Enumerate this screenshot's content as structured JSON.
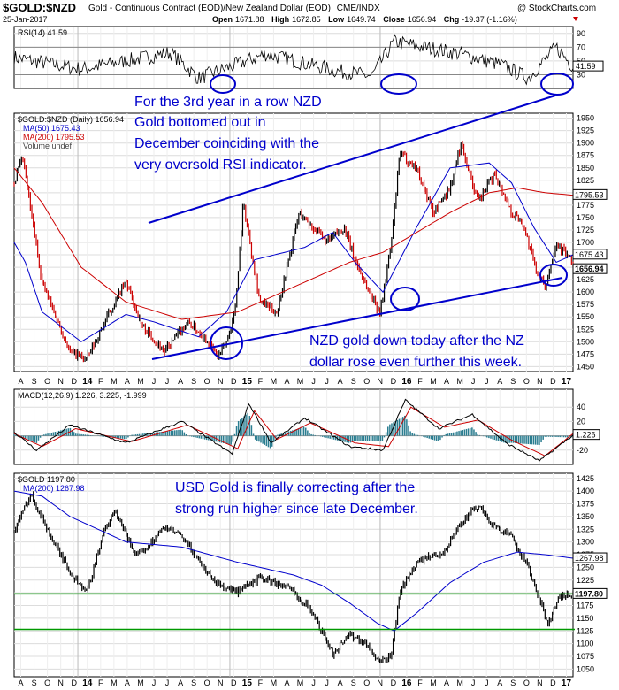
{
  "header": {
    "symbol": "$GOLD:$NZD",
    "description": "Gold - Continuous Contract (EOD)/New Zealand Dollar (EOD)",
    "exchange": "CME/INDX",
    "date": "25-Jan-2017",
    "open_label": "Open",
    "open": "1671.88",
    "high_label": "High",
    "high": "1672.85",
    "low_label": "Low",
    "low": "1649.74",
    "close_label": "Close",
    "close": "1656.94",
    "chg_label": "Chg",
    "chg": "-19.37 (-1.16%)",
    "watermark": "@ StockCharts.com"
  },
  "colors": {
    "up": "#000000",
    "down": "#cc0000",
    "ma50": "#0000cc",
    "ma200": "#cc0000",
    "annotation": "#0000cc",
    "support": "#009900",
    "rsi_band": "#bbbbbb",
    "macd_hist": "#2a7d90",
    "macd_signal": "#cc0000",
    "grid": "#dcdcdc"
  },
  "annotations": {
    "rsi_note": [
      "For the 3rd year in a row NZD",
      "Gold bottomed out in",
      "December coinciding with the",
      "very oversold RSI indicator."
    ],
    "nzd_note": [
      "NZD gold down today after the NZ",
      "dollar rose even further this week."
    ],
    "usd_note": [
      "USD Gold is finally correcting after the",
      "strong run higher since late December."
    ]
  },
  "chart_data": [
    {
      "type": "line",
      "panel": "rsi",
      "title": "RSI(14) 41.59",
      "ylim": [
        10,
        100
      ],
      "yticks": [
        90,
        70,
        50,
        30
      ],
      "bands": [
        30,
        70
      ],
      "last_value": "41.59",
      "sample_points": [
        [
          0,
          55
        ],
        [
          0.12,
          38
        ],
        [
          0.28,
          62
        ],
        [
          0.33,
          25
        ],
        [
          0.45,
          60
        ],
        [
          0.58,
          35
        ],
        [
          0.64,
          28
        ],
        [
          0.68,
          78
        ],
        [
          0.8,
          60
        ],
        [
          0.87,
          45
        ],
        [
          0.92,
          25
        ],
        [
          0.97,
          70
        ],
        [
          1.0,
          42
        ]
      ]
    },
    {
      "type": "line",
      "panel": "price_nzd",
      "title": "$GOLD:$NZD (Daily) 1656.94",
      "ylim": [
        1440,
        1960
      ],
      "yticks": [
        1950,
        1925,
        1900,
        1875,
        1850,
        1825,
        1800,
        1775,
        1750,
        1725,
        1700,
        1675,
        1650,
        1625,
        1600,
        1575,
        1550,
        1525,
        1500,
        1475,
        1450
      ],
      "series": [
        {
          "name": "MA(50) 1675.43",
          "points": [
            [
              0,
              1700
            ],
            [
              0.02,
              1660
            ],
            [
              0.05,
              1560
            ],
            [
              0.12,
              1500
            ],
            [
              0.2,
              1555
            ],
            [
              0.25,
              1540
            ],
            [
              0.33,
              1510
            ],
            [
              0.38,
              1560
            ],
            [
              0.43,
              1665
            ],
            [
              0.52,
              1690
            ],
            [
              0.57,
              1720
            ],
            [
              0.61,
              1660
            ],
            [
              0.66,
              1600
            ],
            [
              0.72,
              1730
            ],
            [
              0.78,
              1850
            ],
            [
              0.85,
              1860
            ],
            [
              0.89,
              1820
            ],
            [
              0.93,
              1730
            ],
            [
              0.97,
              1660
            ],
            [
              1.0,
              1675
            ]
          ]
        },
        {
          "name": "MA(200) 1795.53",
          "points": [
            [
              0,
              1850
            ],
            [
              0.05,
              1780
            ],
            [
              0.12,
              1650
            ],
            [
              0.2,
              1580
            ],
            [
              0.3,
              1545
            ],
            [
              0.4,
              1560
            ],
            [
              0.5,
              1610
            ],
            [
              0.6,
              1660
            ],
            [
              0.66,
              1680
            ],
            [
              0.72,
              1720
            ],
            [
              0.78,
              1760
            ],
            [
              0.85,
              1800
            ],
            [
              0.9,
              1810
            ],
            [
              0.95,
              1800
            ],
            [
              1.0,
              1795
            ]
          ]
        },
        {
          "name": "Volume undef",
          "points": []
        },
        {
          "name": "Price",
          "points": [
            [
              0,
              1820
            ],
            [
              0.015,
              1870
            ],
            [
              0.05,
              1620
            ],
            [
              0.1,
              1480
            ],
            [
              0.13,
              1465
            ],
            [
              0.18,
              1580
            ],
            [
              0.2,
              1620
            ],
            [
              0.23,
              1530
            ],
            [
              0.27,
              1480
            ],
            [
              0.31,
              1540
            ],
            [
              0.34,
              1510
            ],
            [
              0.365,
              1470
            ],
            [
              0.38,
              1500
            ],
            [
              0.395,
              1560
            ],
            [
              0.41,
              1780
            ],
            [
              0.44,
              1580
            ],
            [
              0.47,
              1560
            ],
            [
              0.51,
              1760
            ],
            [
              0.56,
              1700
            ],
            [
              0.59,
              1730
            ],
            [
              0.61,
              1665
            ],
            [
              0.635,
              1600
            ],
            [
              0.655,
              1560
            ],
            [
              0.675,
              1700
            ],
            [
              0.69,
              1880
            ],
            [
              0.72,
              1850
            ],
            [
              0.75,
              1760
            ],
            [
              0.78,
              1810
            ],
            [
              0.8,
              1900
            ],
            [
              0.83,
              1780
            ],
            [
              0.86,
              1840
            ],
            [
              0.89,
              1760
            ],
            [
              0.91,
              1740
            ],
            [
              0.935,
              1640
            ],
            [
              0.95,
              1610
            ],
            [
              0.97,
              1700
            ],
            [
              0.985,
              1680
            ],
            [
              1.0,
              1657
            ]
          ]
        }
      ],
      "last_labels": [
        "1795.53",
        "1675.43",
        "1656.94"
      ]
    },
    {
      "type": "line",
      "panel": "macd",
      "title": "MACD(12,26,9) 1.226, 3.225, -1.999",
      "ylim": [
        -40,
        65
      ],
      "yticks": [
        40,
        20,
        -20
      ],
      "last_value": "1.226",
      "series": [
        {
          "name": "MACD 1.226",
          "points": [
            [
              0,
              5
            ],
            [
              0.04,
              -20
            ],
            [
              0.1,
              15
            ],
            [
              0.2,
              -10
            ],
            [
              0.3,
              20
            ],
            [
              0.39,
              -25
            ],
            [
              0.42,
              45
            ],
            [
              0.46,
              -10
            ],
            [
              0.52,
              25
            ],
            [
              0.6,
              -15
            ],
            [
              0.66,
              -20
            ],
            [
              0.7,
              50
            ],
            [
              0.76,
              10
            ],
            [
              0.82,
              30
            ],
            [
              0.88,
              -10
            ],
            [
              0.94,
              -35
            ],
            [
              1.0,
              1
            ]
          ]
        },
        {
          "name": "Signal 3.225",
          "points": [
            [
              0,
              3
            ],
            [
              0.05,
              -15
            ],
            [
              0.11,
              10
            ],
            [
              0.21,
              -8
            ],
            [
              0.31,
              15
            ],
            [
              0.4,
              -18
            ],
            [
              0.43,
              35
            ],
            [
              0.47,
              -5
            ],
            [
              0.53,
              18
            ],
            [
              0.61,
              -10
            ],
            [
              0.67,
              -15
            ],
            [
              0.71,
              40
            ],
            [
              0.77,
              12
            ],
            [
              0.83,
              22
            ],
            [
              0.89,
              -6
            ],
            [
              0.95,
              -28
            ],
            [
              1.0,
              3
            ]
          ]
        },
        {
          "name": "Histogram -1.999",
          "points": []
        }
      ]
    },
    {
      "type": "line",
      "panel": "price_usd",
      "title": "$GOLD 1197.80",
      "ylim": [
        1035,
        1435
      ],
      "yticks": [
        1425,
        1400,
        1375,
        1350,
        1325,
        1300,
        1275,
        1250,
        1225,
        1200,
        1175,
        1150,
        1125,
        1100,
        1075,
        1050
      ],
      "series": [
        {
          "name": "MA(200) 1267.98",
          "points": [
            [
              0,
              1400
            ],
            [
              0.05,
              1390
            ],
            [
              0.1,
              1350
            ],
            [
              0.2,
              1300
            ],
            [
              0.3,
              1290
            ],
            [
              0.4,
              1260
            ],
            [
              0.5,
              1235
            ],
            [
              0.55,
              1215
            ],
            [
              0.6,
              1180
            ],
            [
              0.65,
              1140
            ],
            [
              0.68,
              1125
            ],
            [
              0.72,
              1160
            ],
            [
              0.78,
              1220
            ],
            [
              0.84,
              1260
            ],
            [
              0.9,
              1280
            ],
            [
              0.95,
              1275
            ],
            [
              1.0,
              1268
            ]
          ]
        },
        {
          "name": "Price",
          "points": [
            [
              0,
              1320
            ],
            [
              0.03,
              1395
            ],
            [
              0.07,
              1300
            ],
            [
              0.1,
              1240
            ],
            [
              0.13,
              1200
            ],
            [
              0.16,
              1320
            ],
            [
              0.18,
              1360
            ],
            [
              0.22,
              1270
            ],
            [
              0.27,
              1330
            ],
            [
              0.3,
              1310
            ],
            [
              0.36,
              1220
            ],
            [
              0.4,
              1200
            ],
            [
              0.44,
              1230
            ],
            [
              0.49,
              1210
            ],
            [
              0.53,
              1170
            ],
            [
              0.57,
              1080
            ],
            [
              0.6,
              1120
            ],
            [
              0.63,
              1100
            ],
            [
              0.655,
              1060
            ],
            [
              0.675,
              1080
            ],
            [
              0.69,
              1200
            ],
            [
              0.72,
              1260
            ],
            [
              0.77,
              1280
            ],
            [
              0.8,
              1340
            ],
            [
              0.83,
              1370
            ],
            [
              0.86,
              1330
            ],
            [
              0.89,
              1310
            ],
            [
              0.92,
              1250
            ],
            [
              0.935,
              1200
            ],
            [
              0.955,
              1140
            ],
            [
              0.975,
              1190
            ],
            [
              1.0,
              1198
            ]
          ]
        }
      ],
      "hlines": [
        1197.8,
        1128
      ],
      "last_labels": [
        "1267.98",
        "1197.80"
      ]
    }
  ],
  "xaxis": {
    "months_row1": [
      "A",
      "S",
      "O",
      "N",
      "D",
      "14",
      "F",
      "M",
      "A",
      "M",
      "J",
      "J",
      "A",
      "S",
      "O",
      "N",
      "D",
      "15",
      "F",
      "M",
      "A",
      "M",
      "J",
      "J",
      "A",
      "S",
      "O",
      "N",
      "D",
      "16",
      "F",
      "M",
      "A",
      "M",
      "J",
      "J",
      "A",
      "S",
      "O",
      "N",
      "D",
      "17"
    ],
    "months_row2": [
      "A",
      "S",
      "O",
      "N",
      "D",
      "14",
      "F",
      "M",
      "A",
      "M",
      "J",
      "J",
      "A",
      "S",
      "O",
      "N",
      "D",
      "15",
      "F",
      "M",
      "A",
      "M",
      "J",
      "J",
      "A",
      "S",
      "O",
      "N",
      "D",
      "16",
      "F",
      "M",
      "A",
      "M",
      "J",
      "J",
      "A",
      "S",
      "O",
      "N",
      "D",
      "17"
    ]
  }
}
